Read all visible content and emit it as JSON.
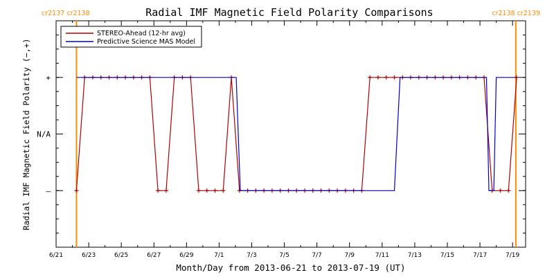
{
  "chart_data": {
    "type": "line",
    "title": "Radial IMF Magnetic Field Polarity Comparisons",
    "xlabel": "Month/Day from 2013-06-21 to 2013-07-19 (UT)",
    "ylabel": "Radial IMF Magnetic Field Polarity (−,+)",
    "x_unit": "days since 2013-06-21 00:00 UT",
    "xlim": [
      0,
      28.8
    ],
    "ylim": [
      -2,
      2
    ],
    "x_ticks": [
      {
        "x": 0,
        "label": "6/21"
      },
      {
        "x": 2,
        "label": "6/23"
      },
      {
        "x": 4,
        "label": "6/25"
      },
      {
        "x": 6,
        "label": "6/27"
      },
      {
        "x": 8,
        "label": "6/29"
      },
      {
        "x": 10,
        "label": "7/1"
      },
      {
        "x": 12,
        "label": "7/3"
      },
      {
        "x": 14,
        "label": "7/5"
      },
      {
        "x": 16,
        "label": "7/7"
      },
      {
        "x": 18,
        "label": "7/9"
      },
      {
        "x": 20,
        "label": "7/11"
      },
      {
        "x": 22,
        "label": "7/13"
      },
      {
        "x": 24,
        "label": "7/15"
      },
      {
        "x": 26,
        "label": "7/17"
      },
      {
        "x": 28,
        "label": "7/19"
      }
    ],
    "y_ticks": [
      {
        "y": 1,
        "label": "+"
      },
      {
        "y": 0,
        "label": "N/A"
      },
      {
        "y": -1,
        "label": "–"
      }
    ],
    "carrington_markers": [
      {
        "x": 1.25,
        "label": "cr2137 cr2138",
        "anchor": "left"
      },
      {
        "x": 28.2,
        "label": "cr2138 cr2139",
        "anchor": "right"
      }
    ],
    "legend": {
      "position": "top-left"
    },
    "series": [
      {
        "name": "STEREO-Ahead (12-hr avg)",
        "color": "#b00000",
        "markers": true,
        "x": [
          1.25,
          1.75,
          2.25,
          2.75,
          3.25,
          3.75,
          4.25,
          4.75,
          5.25,
          5.75,
          6.25,
          6.75,
          7.25,
          7.75,
          8.25,
          8.75,
          9.25,
          9.75,
          10.25,
          10.75,
          11.25,
          11.75,
          12.25,
          12.75,
          13.25,
          13.75,
          14.25,
          14.75,
          15.25,
          15.75,
          16.25,
          16.75,
          17.25,
          17.75,
          18.25,
          18.75,
          19.25,
          19.75,
          20.25,
          20.75,
          21.25,
          21.75,
          22.25,
          22.75,
          23.25,
          23.75,
          24.25,
          24.75,
          25.25,
          25.75,
          26.25,
          26.75,
          27.25,
          27.75,
          28.25
        ],
        "y": [
          -1,
          1,
          1,
          1,
          1,
          1,
          1,
          1,
          1,
          1,
          -1,
          -1,
          1,
          1,
          1,
          -1,
          -1,
          -1,
          -1,
          1,
          -1,
          -1,
          -1,
          -1,
          -1,
          -1,
          -1,
          -1,
          -1,
          -1,
          -1,
          -1,
          -1,
          -1,
          -1,
          -1,
          1,
          1,
          1,
          1,
          1,
          1,
          1,
          1,
          1,
          1,
          1,
          1,
          1,
          1,
          1,
          -1,
          -1,
          -1,
          1
        ]
      },
      {
        "name": "Predictive Science MAS Model",
        "color": "#0000c8",
        "markers": false,
        "x": [
          1.25,
          11.05,
          11.3,
          20.75,
          21.1,
          26.4,
          26.55,
          26.85,
          27.0,
          28.25
        ],
        "y": [
          1,
          1,
          -1,
          -1,
          1,
          1,
          -1,
          -1,
          1,
          1
        ]
      }
    ]
  }
}
